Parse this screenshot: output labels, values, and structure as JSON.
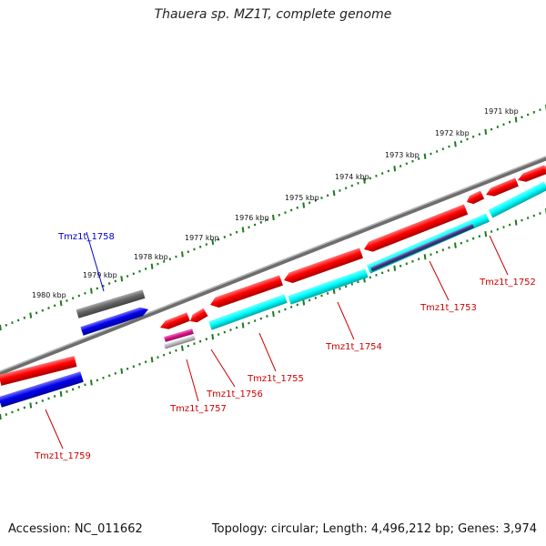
{
  "title": "Thauera sp. MZ1T, complete genome",
  "footer": {
    "accession": "Accession: NC_011662",
    "summary": "Topology: circular; Length: 4,496,212 bp; Genes: 3,974"
  },
  "colors": {
    "backbone": "#8a8a8a",
    "ruler": "#1d7a1d",
    "forward_cds": "#ff0000",
    "reverse_cds": "#00ffff",
    "highlight_blue": "#0000ee",
    "highlight_gray": "#666666",
    "magenta": "#e0148c",
    "slate": "#3a3a8a",
    "light_gray": "#bbbbbb",
    "label_red": "#cc0000",
    "label_blue": "#0000cc"
  },
  "ruler_labels": [
    "1980 kbp",
    "1979 kbp",
    "1978 kbp",
    "1977 kbp",
    "1976 kbp",
    "1975 kbp",
    "1974 kbp",
    "1973 kbp",
    "1972 kbp",
    "1971 kbp"
  ],
  "gene_labels": [
    {
      "text": "Tmz1t_1758",
      "color": "label_blue"
    },
    {
      "text": "Tmz1t_1759",
      "color": "label_red"
    },
    {
      "text": "Tmz1t_1757",
      "color": "label_red"
    },
    {
      "text": "Tmz1t_1756",
      "color": "label_red"
    },
    {
      "text": "Tmz1t_1755",
      "color": "label_red"
    },
    {
      "text": "Tmz1t_1754",
      "color": "label_red"
    },
    {
      "text": "Tmz1t_1753",
      "color": "label_red"
    },
    {
      "text": "Tmz1t_1752",
      "color": "label_red"
    }
  ]
}
